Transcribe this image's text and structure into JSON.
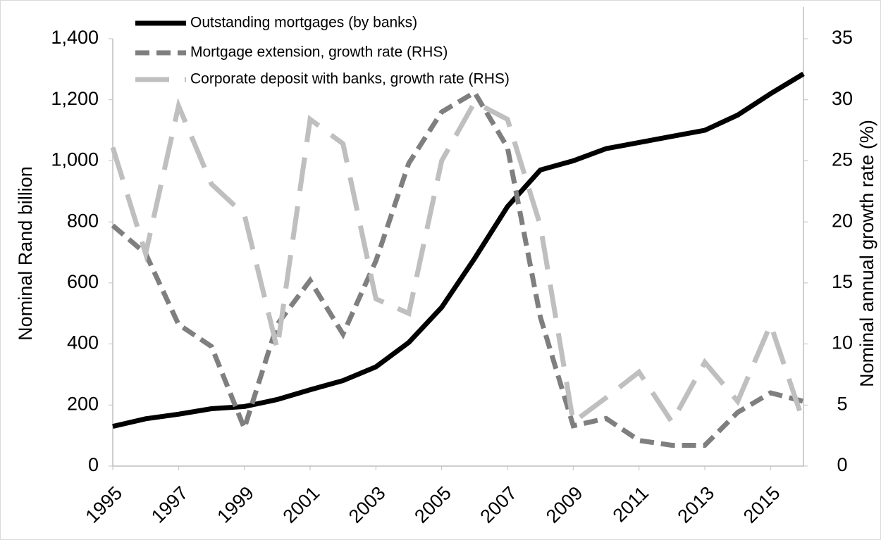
{
  "chart_data": {
    "type": "line",
    "ylabel": "Nominal Rand billion",
    "y2label": "Nominal annual growth rate (%)",
    "x": [
      1995,
      1996,
      1997,
      1998,
      1999,
      2000,
      2001,
      2002,
      2003,
      2004,
      2005,
      2006,
      2007,
      2008,
      2009,
      2010,
      2011,
      2012,
      2013,
      2014,
      2015,
      2016
    ],
    "xlim": [
      1995,
      2016
    ],
    "xticks": [
      1995,
      1997,
      1999,
      2001,
      2003,
      2005,
      2007,
      2009,
      2011,
      2013,
      2015
    ],
    "ylim": [
      0,
      1400
    ],
    "yticks": [
      0,
      200,
      400,
      600,
      800,
      {
        "value": 1000,
        "label": "1,000"
      },
      {
        "value": 1200,
        "label": "1,200"
      },
      {
        "value": 1400,
        "label": "1,400"
      }
    ],
    "y2lim": [
      0,
      35
    ],
    "y2ticks": [
      0,
      5,
      10,
      15,
      20,
      25,
      30,
      35
    ],
    "legend": "top",
    "series": [
      {
        "name": "Outstanding mortgages (by banks)",
        "color": "#000000",
        "style": "solid",
        "values": [
          130,
          155,
          170,
          188,
          195,
          218,
          250,
          280,
          325,
          405,
          520,
          680,
          850,
          970,
          1000,
          1040,
          1060,
          1080,
          1100,
          1150,
          1220,
          1285
        ]
      },
      {
        "name": "Mortgage extension, growth rate (RHS)",
        "color": "#7f7f7f",
        "style": "dashed",
        "axis": "y2",
        "values": [
          19.7,
          17.4,
          11.6,
          9.8,
          3.1,
          11.6,
          15.2,
          10.8,
          16.8,
          24.8,
          29.0,
          30.6,
          26.1,
          12.2,
          3.3,
          3.9,
          2.1,
          1.7,
          1.7,
          4.4,
          6.0,
          5.3
        ]
      },
      {
        "name": "Corporate deposit with banks, growth rate (RHS)",
        "color": "#bfbfbf",
        "style": "long-dash",
        "axis": "y2",
        "values": [
          26.1,
          17.4,
          29.5,
          23.1,
          20.6,
          9.6,
          28.4,
          26.4,
          13.7,
          12.5,
          25.0,
          29.8,
          28.4,
          19.7,
          3.6,
          5.6,
          7.7,
          3.6,
          8.5,
          5.3,
          11.6,
          3.6
        ]
      }
    ]
  }
}
